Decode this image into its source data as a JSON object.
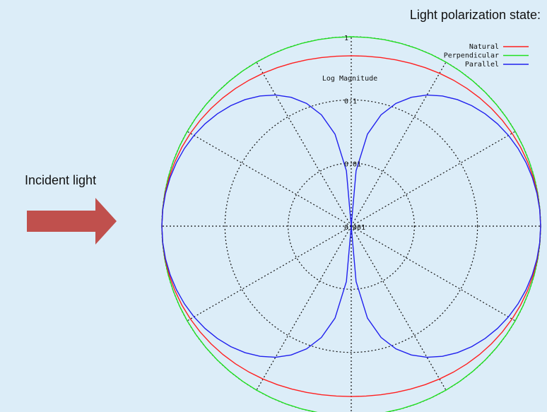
{
  "chart_data": {
    "type": "polar",
    "title": "Light polarization state:",
    "subtitle": "Log Magnitude",
    "annotations": [
      "Incident light"
    ],
    "log_scale": true,
    "rlim": [
      0.001,
      1
    ],
    "rticks": [
      1,
      0.1,
      0.01,
      0.001
    ],
    "thetaticks": [
      0,
      30,
      60,
      90,
      120,
      150,
      180,
      210,
      240,
      270,
      300,
      330
    ],
    "grid": true,
    "legend": "upper right",
    "theta": [
      0,
      5,
      10,
      15,
      20,
      25,
      30,
      35,
      40,
      45,
      50,
      55,
      60,
      65,
      70,
      75,
      80,
      85,
      90,
      95,
      100,
      105,
      110,
      115,
      120,
      125,
      130,
      135,
      140,
      145,
      150,
      155,
      160,
      165,
      170,
      175,
      180,
      185,
      190,
      195,
      200,
      205,
      210,
      215,
      220,
      225,
      230,
      235,
      240,
      245,
      250,
      255,
      260,
      265,
      270,
      275,
      280,
      285,
      290,
      295,
      300,
      305,
      310,
      315,
      320,
      325,
      330,
      335,
      340,
      345,
      350,
      355
    ],
    "series": [
      {
        "name": "Natural",
        "color": "#ff2020",
        "values": [
          1,
          0.9962,
          0.9849,
          0.9665,
          0.9415,
          0.9107,
          0.875,
          0.8355,
          0.7934,
          0.75,
          0.7066,
          0.6645,
          0.625,
          0.5893,
          0.5585,
          0.5335,
          0.5151,
          0.5038,
          0.5,
          0.5038,
          0.5151,
          0.5335,
          0.5585,
          0.5893,
          0.625,
          0.6645,
          0.7066,
          0.75,
          0.7934,
          0.8355,
          0.875,
          0.9107,
          0.9415,
          0.9665,
          0.9849,
          0.9962,
          1,
          0.9962,
          0.9849,
          0.9665,
          0.9415,
          0.9107,
          0.875,
          0.8355,
          0.7934,
          0.75,
          0.7066,
          0.6645,
          0.625,
          0.5893,
          0.5585,
          0.5335,
          0.5151,
          0.5038,
          0.5,
          0.5038,
          0.5151,
          0.5335,
          0.5585,
          0.5893,
          0.625,
          0.6645,
          0.7066,
          0.75,
          0.7934,
          0.8355,
          0.875,
          0.9107,
          0.9415,
          0.9665,
          0.9849,
          0.9962
        ]
      },
      {
        "name": "Perpendicular",
        "color": "#20e020",
        "values": [
          1,
          1,
          1,
          1,
          1,
          1,
          1,
          1,
          1,
          1,
          1,
          1,
          1,
          1,
          1,
          1,
          1,
          1,
          1,
          1,
          1,
          1,
          1,
          1,
          1,
          1,
          1,
          1,
          1,
          1,
          1,
          1,
          1,
          1,
          1,
          1,
          1,
          1,
          1,
          1,
          1,
          1,
          1,
          1,
          1,
          1,
          1,
          1,
          1,
          1,
          1,
          1,
          1,
          1,
          1,
          1,
          1,
          1,
          1,
          1,
          1,
          1,
          1,
          1,
          1,
          1,
          1,
          1,
          1,
          1,
          1,
          1
        ]
      },
      {
        "name": "Parallel",
        "color": "#2020ee",
        "values": [
          1,
          0.9924,
          0.9698,
          0.933,
          0.883,
          0.8214,
          0.75,
          0.671,
          0.5868,
          0.5,
          0.4132,
          0.329,
          0.25,
          0.1786,
          0.117,
          0.067,
          0.0302,
          0.0076,
          0.001,
          0.0076,
          0.0302,
          0.067,
          0.117,
          0.1786,
          0.25,
          0.329,
          0.4132,
          0.5,
          0.5868,
          0.671,
          0.75,
          0.8214,
          0.883,
          0.933,
          0.9698,
          0.9924,
          1,
          0.9924,
          0.9698,
          0.933,
          0.883,
          0.8214,
          0.75,
          0.671,
          0.5868,
          0.5,
          0.4132,
          0.329,
          0.25,
          0.1786,
          0.117,
          0.067,
          0.0302,
          0.0076,
          0.001,
          0.0076,
          0.0302,
          0.067,
          0.117,
          0.1786,
          0.25,
          0.329,
          0.4132,
          0.5,
          0.5868,
          0.671,
          0.75,
          0.8214,
          0.883,
          0.933,
          0.9698,
          0.9924
        ]
      }
    ]
  }
}
